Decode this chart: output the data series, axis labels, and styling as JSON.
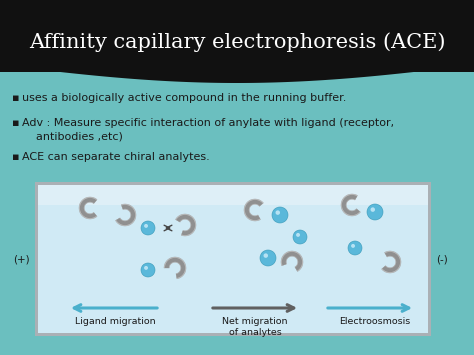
{
  "title": "Affinity capillary electrophoresis (ACE)",
  "title_color": "#ffffff",
  "title_fontsize": 15,
  "bg_dark_color": "#111111",
  "bg_teal_color": "#6bbfbf",
  "bullet_points": [
    "uses a biologically active compound in the running buffer.",
    "Adv : Measure specific interaction of anylate with ligand (receptor,\n    antibodies ,etc)",
    "ACE can separate chiral analytes."
  ],
  "bullet_color": "#1a1a1a",
  "bullet_fontsize": 8.0,
  "diagram_fill": "#d8eef6",
  "diagram_border": "#b0b8bb",
  "diagram_white_fill": "#eef6fa",
  "ligand_color": "#808080",
  "analyte_color_main": "#5bbcd6",
  "analyte_color_light": "#80d0e8",
  "arrow_teal": "#4ab0cc",
  "arrow_gray": "#606060",
  "label_left": "(+)",
  "label_right": "(-)",
  "caption_left": "Ligand migration",
  "caption_center": "Net migration\nof analytes",
  "caption_right": "Electroosmosis"
}
